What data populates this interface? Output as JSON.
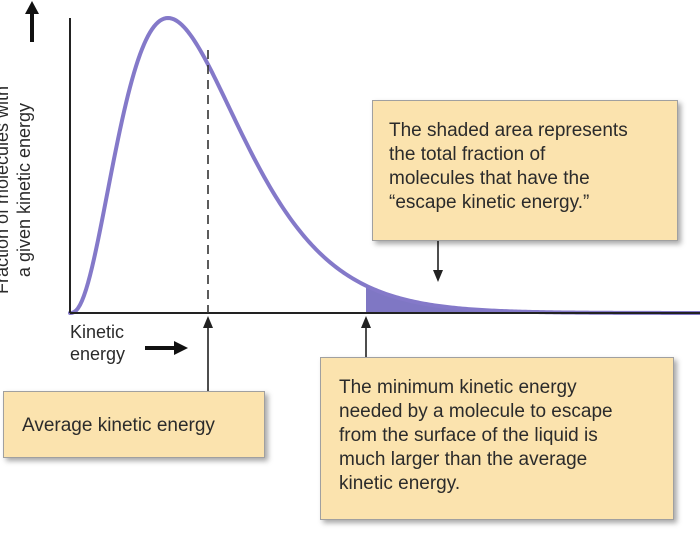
{
  "axes": {
    "y_label_lines": [
      "Fraction of molecules with",
      "a given kinetic energy"
    ],
    "x_label_lines": [
      "Kinetic",
      "energy"
    ]
  },
  "callouts": {
    "shaded_area": {
      "lines": [
        "The shaded area represents",
        "the total fraction of",
        "molecules that have the",
        "“escape kinetic energy.”"
      ]
    },
    "minimum_energy": {
      "lines": [
        "The minimum kinetic energy",
        "needed by a molecule to escape",
        "from the surface of the liquid is",
        "much larger than the average",
        "kinetic energy."
      ]
    },
    "average_energy": {
      "lines": [
        "Average kinetic energy"
      ]
    }
  },
  "colors": {
    "curve": "#8479c9",
    "shaded_fill": "#7f77c4",
    "callout_fill": "#fbe3ae",
    "axis": "#222222"
  },
  "icons": [
    "up-arrow-icon",
    "right-arrow-icon"
  ]
}
